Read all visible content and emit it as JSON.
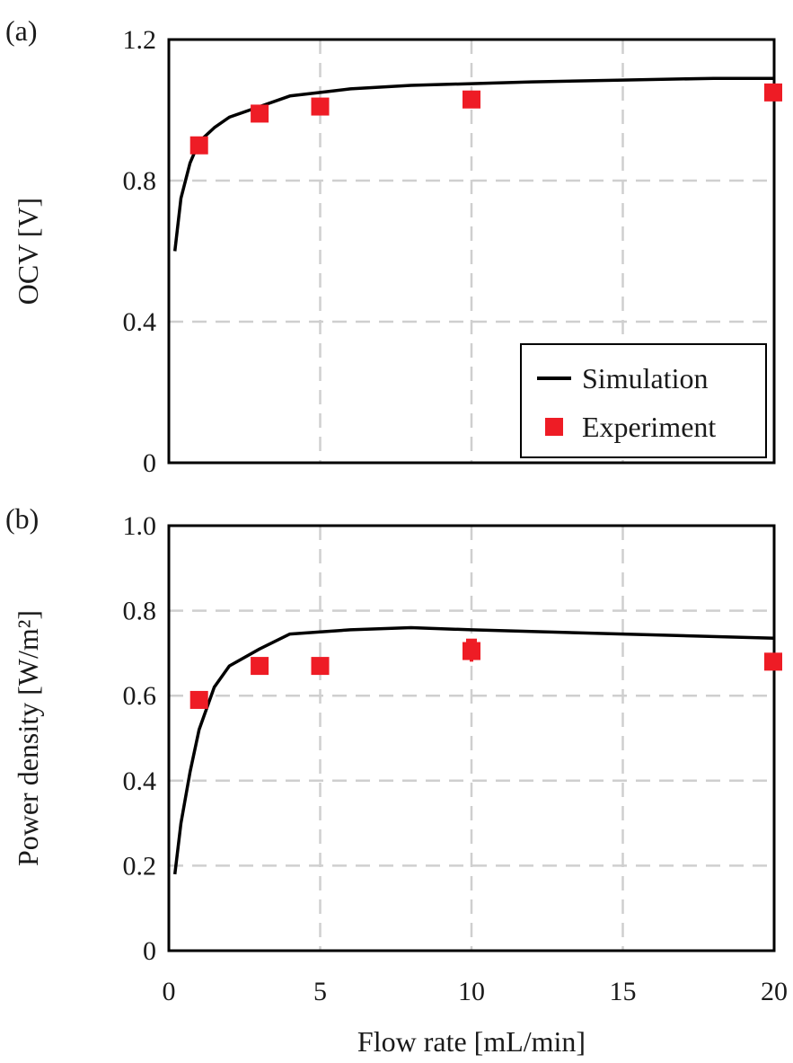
{
  "chart_data": [
    {
      "type": "line",
      "panel_label": "(a)",
      "xlabel": "",
      "ylabel": "OCV [V]",
      "xlim": [
        0,
        20
      ],
      "ylim": [
        0,
        1.2
      ],
      "x_ticks": [
        0,
        5,
        10,
        15,
        20
      ],
      "y_ticks": [
        0,
        0.4,
        0.8,
        1.2
      ],
      "y_tick_labels": [
        "0",
        "0.4",
        "0.8",
        "1.2"
      ],
      "x_tick_labels_shown": false,
      "grid": true,
      "legend": {
        "position": "bottom-right",
        "entries": [
          {
            "label": "Simulation",
            "marker": "line",
            "color": "#000000"
          },
          {
            "label": "Experiment",
            "marker": "square",
            "color": "#ee1c25"
          }
        ]
      },
      "series": [
        {
          "name": "Simulation",
          "kind": "line",
          "color": "#000000",
          "x": [
            0.2,
            0.4,
            0.7,
            1,
            1.5,
            2,
            3,
            4,
            5,
            6,
            8,
            10,
            12,
            15,
            18,
            20
          ],
          "y": [
            0.6,
            0.75,
            0.85,
            0.91,
            0.95,
            0.98,
            1.01,
            1.04,
            1.05,
            1.06,
            1.07,
            1.075,
            1.08,
            1.085,
            1.09,
            1.09
          ]
        },
        {
          "name": "Experiment",
          "kind": "scatter",
          "color": "#ee1c25",
          "x": [
            1,
            3,
            5,
            10,
            20
          ],
          "y": [
            0.9,
            0.99,
            1.01,
            1.03,
            1.05
          ]
        }
      ]
    },
    {
      "type": "line",
      "panel_label": "(b)",
      "xlabel": "Flow rate [mL/min]",
      "ylabel": "Power density [W/m²]",
      "xlim": [
        0,
        20
      ],
      "ylim": [
        0,
        1.0
      ],
      "x_ticks": [
        0,
        5,
        10,
        15,
        20
      ],
      "x_tick_labels": [
        "0",
        "5",
        "10",
        "15",
        "20"
      ],
      "y_ticks": [
        0,
        0.2,
        0.4,
        0.6,
        0.8,
        1.0
      ],
      "y_tick_labels": [
        "0",
        "0.2",
        "0.4",
        "0.6",
        "0.8",
        "1.0"
      ],
      "grid": true,
      "series": [
        {
          "name": "Simulation",
          "kind": "line",
          "color": "#000000",
          "x": [
            0.2,
            0.4,
            0.7,
            1,
            1.5,
            2,
            3,
            4,
            5,
            6,
            8,
            10,
            15,
            20
          ],
          "y": [
            0.18,
            0.3,
            0.42,
            0.52,
            0.62,
            0.67,
            0.71,
            0.745,
            0.75,
            0.755,
            0.76,
            0.755,
            0.745,
            0.735
          ]
        },
        {
          "name": "Experiment",
          "kind": "scatter",
          "color": "#ee1c25",
          "x": [
            1,
            3,
            5,
            10,
            20
          ],
          "y": [
            0.59,
            0.67,
            0.67,
            0.705,
            0.68
          ],
          "error": [
            0,
            0,
            0,
            0.025,
            0.01
          ]
        }
      ]
    }
  ]
}
